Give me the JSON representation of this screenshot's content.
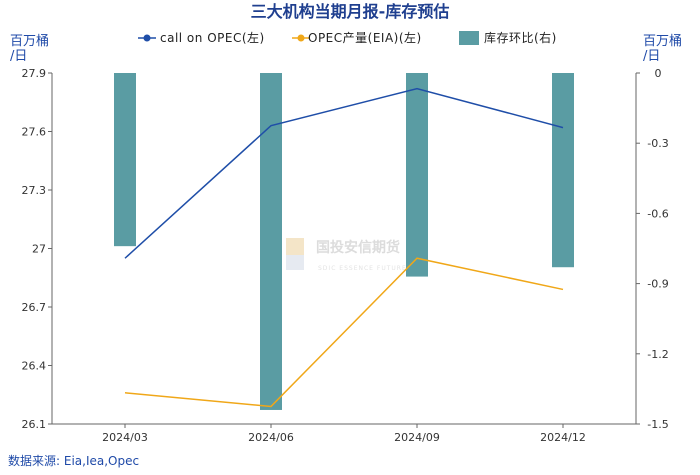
{
  "colors": {
    "title": "#1f3f8f",
    "unit": "#1f4aa8",
    "line_call": "#1f4ea8",
    "line_opec": "#f0a718",
    "bar": "#5a9ca3"
  },
  "chart_data": {
    "type": "bar",
    "title": "三大机构当期月报-库存预估",
    "y_left_unit": "百万桶/日",
    "y_right_unit": "百万桶/日",
    "categories": [
      "2024/03",
      "2024/06",
      "2024/09",
      "2024/12"
    ],
    "y_left": {
      "min": 26.1,
      "max": 27.9,
      "ticks": [
        "27.9",
        "27.6",
        "27.3",
        "27",
        "26.7",
        "26.4",
        "26.1"
      ]
    },
    "y_right": {
      "min": -1.5,
      "max": 0,
      "ticks": [
        "0",
        "-0.3",
        "-0.6",
        "-0.9",
        "-1.2",
        "-1.5"
      ]
    },
    "grid": false,
    "legend_position": "top",
    "series": [
      {
        "name": "call on OPEC(左)",
        "kind": "line",
        "axis": "left",
        "values": [
          26.95,
          27.63,
          27.82,
          27.62
        ]
      },
      {
        "name": "OPEC产量(EIA)(左)",
        "kind": "line",
        "axis": "left",
        "values": [
          26.26,
          26.19,
          26.95,
          26.79
        ]
      },
      {
        "name": "库存环比(右)",
        "kind": "bar",
        "axis": "right",
        "values": [
          -0.74,
          -1.44,
          -0.87,
          -0.83
        ]
      }
    ],
    "source": "数据来源: Eia,Iea,Opec",
    "watermark": {
      "cn": "国投安信期货",
      "en": "SDIC ESSENCE FUTURES"
    }
  }
}
